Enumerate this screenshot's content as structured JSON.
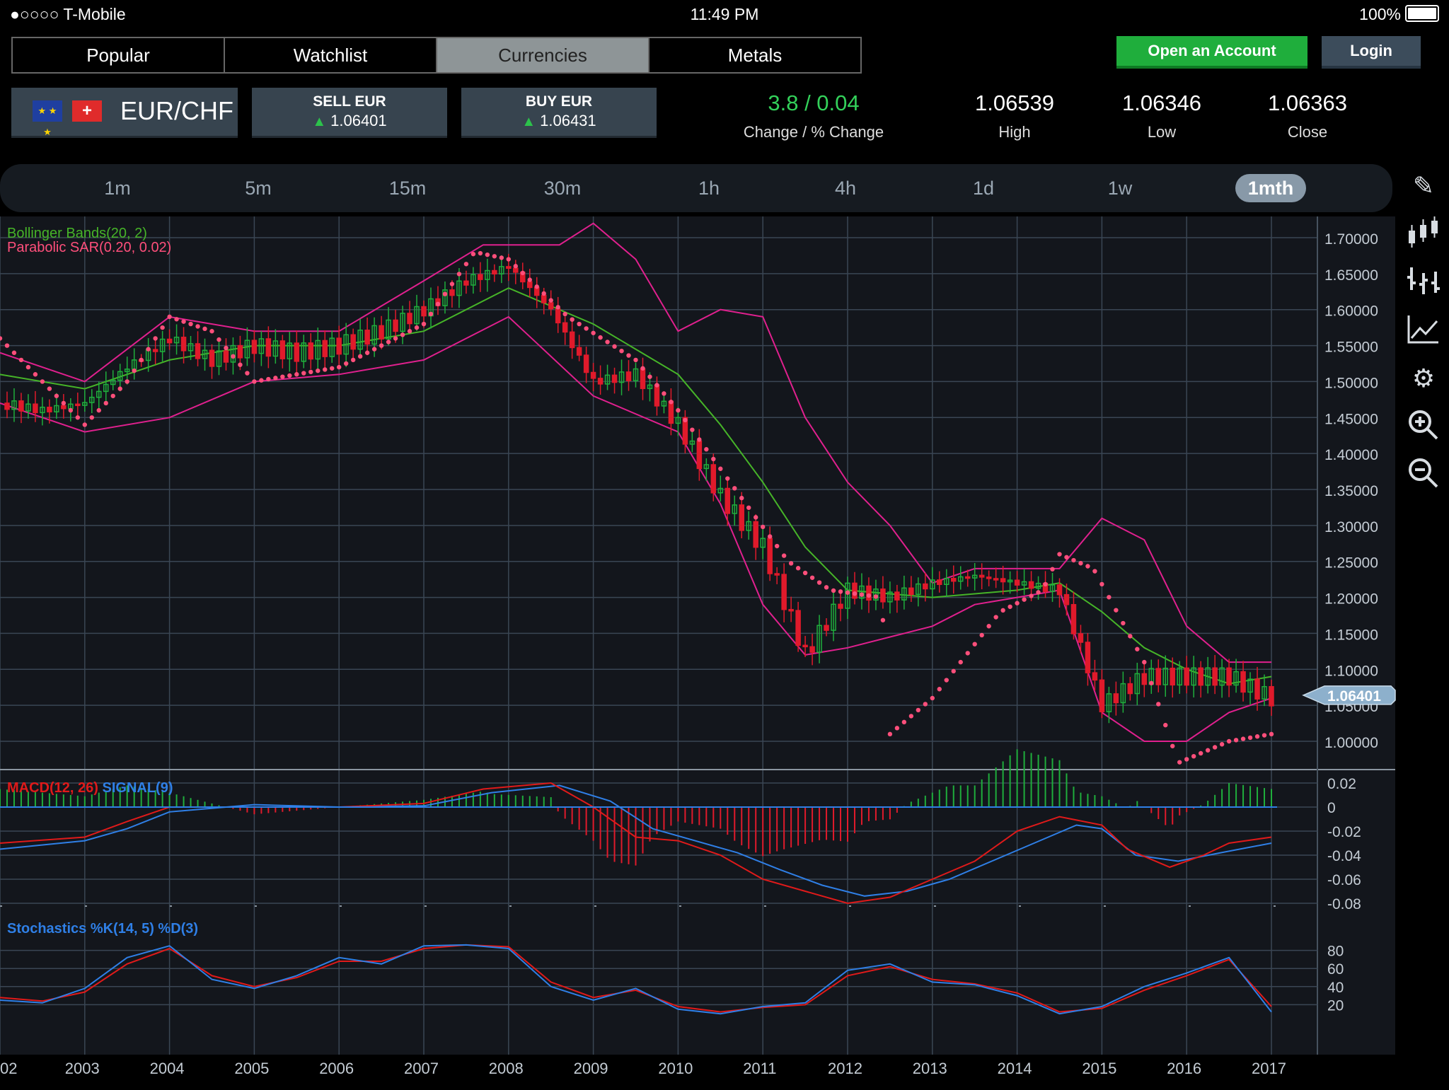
{
  "status": {
    "carrier": "●○○○○ T-Mobile",
    "time": "11:49 PM",
    "battery": "100%"
  },
  "tabs": [
    "Popular",
    "Watchlist",
    "Currencies",
    "Metals"
  ],
  "active_tab": "Currencies",
  "header": {
    "open_account": "Open an Account",
    "login": "Login"
  },
  "instrument": {
    "pair": "EUR/CHF",
    "sell_label": "SELL EUR",
    "sell_price": "1.06401",
    "buy_label": "BUY EUR",
    "buy_price": "1.06431",
    "change_value": "3.8 / 0.04",
    "change_label": "Change / % Change",
    "high_value": "1.06539",
    "high_label": "High",
    "low_value": "1.06346",
    "low_label": "Low",
    "close_value": "1.06363",
    "close_label": "Close"
  },
  "timeframes": [
    "1m",
    "5m",
    "15m",
    "30m",
    "1h",
    "4h",
    "1d",
    "1w",
    "1mth"
  ],
  "active_timeframe": "1mth",
  "tools": [
    "pencil-icon",
    "candlestick-icon",
    "ohlc-icon",
    "line-chart-icon",
    "gear-icon",
    "zoom-in-icon",
    "zoom-out-icon"
  ],
  "colors": {
    "price_up": "#1fae3c",
    "price_down": "#e01a2b",
    "bollinger": "#e0208e",
    "bollinger_mid": "#46b428",
    "sar": "#ff4f7b",
    "macd": "#e01a1a",
    "signal": "#2f7fe6",
    "stoch_k": "#2f7fe6",
    "stoch_d": "#e01a1a"
  },
  "chart_data": {
    "type": "line",
    "current_price": "1.06401",
    "indicator_labels": {
      "bollinger": "Bollinger Bands(20, 2)",
      "sar": "Parabolic SAR(0.20, 0.02)",
      "macd": "MACD(12, 26)",
      "signal": "SIGNAL(9)",
      "stochastics": "Stochastics %K(14, 5) %D(3)"
    },
    "price_axis": [
      "1.70000",
      "1.65000",
      "1.60000",
      "1.55000",
      "1.50000",
      "1.45000",
      "1.40000",
      "1.35000",
      "1.30000",
      "1.25000",
      "1.20000",
      "1.15000",
      "1.10000",
      "1.05000",
      "1.00000"
    ],
    "macd_axis": [
      "0.02",
      "0",
      "-0.02",
      "-0.04",
      "-0.06",
      "-0.08"
    ],
    "stoch_axis": [
      "80",
      "60",
      "40",
      "20"
    ],
    "x_axis": [
      "02",
      "2003",
      "2004",
      "2005",
      "2006",
      "2007",
      "2008",
      "2009",
      "2010",
      "2011",
      "2012",
      "2013",
      "2014",
      "2015",
      "2016",
      "2017"
    ],
    "ylim": [
      0.95,
      1.73
    ],
    "series": [
      {
        "name": "EUR/CHF",
        "x": [
          2002.0,
          2002.5,
          2003.0,
          2003.5,
          2004.0,
          2004.5,
          2005.0,
          2005.5,
          2006.0,
          2006.5,
          2007.0,
          2007.5,
          2008.0,
          2008.5,
          2009.0,
          2009.5,
          2010.0,
          2010.5,
          2011.0,
          2011.5,
          2012.0,
          2012.5,
          2013.0,
          2013.5,
          2014.0,
          2014.5,
          2015.0,
          2015.5,
          2016.0,
          2016.5,
          2017.0
        ],
        "values": [
          1.47,
          1.46,
          1.47,
          1.52,
          1.56,
          1.53,
          1.55,
          1.54,
          1.55,
          1.57,
          1.6,
          1.64,
          1.66,
          1.6,
          1.5,
          1.51,
          1.44,
          1.34,
          1.27,
          1.12,
          1.21,
          1.2,
          1.22,
          1.23,
          1.22,
          1.21,
          1.05,
          1.09,
          1.09,
          1.09,
          1.06
        ]
      },
      {
        "name": "Bollinger upper",
        "x": [
          2002.0,
          2003.0,
          2004.0,
          2005.0,
          2006.0,
          2007.0,
          2007.7,
          2008.6,
          2009.0,
          2009.5,
          2010.0,
          2010.5,
          2011.0,
          2011.5,
          2012.0,
          2012.5,
          2013.0,
          2013.5,
          2014.0,
          2014.5,
          2015.0,
          2015.5,
          2016.0,
          2016.5,
          2017.0
        ],
        "values": [
          1.54,
          1.5,
          1.59,
          1.57,
          1.57,
          1.64,
          1.69,
          1.69,
          1.72,
          1.67,
          1.57,
          1.6,
          1.59,
          1.45,
          1.36,
          1.3,
          1.22,
          1.24,
          1.24,
          1.24,
          1.31,
          1.28,
          1.16,
          1.11,
          1.11
        ]
      },
      {
        "name": "Bollinger middle",
        "x": [
          2002.0,
          2003.0,
          2004.0,
          2005.0,
          2006.0,
          2007.0,
          2008.0,
          2009.0,
          2010.0,
          2010.5,
          2011.0,
          2011.5,
          2012.0,
          2013.0,
          2014.0,
          2014.5,
          2015.0,
          2015.5,
          2016.0,
          2016.5,
          2017.0
        ],
        "values": [
          1.51,
          1.49,
          1.53,
          1.55,
          1.55,
          1.57,
          1.63,
          1.58,
          1.51,
          1.44,
          1.36,
          1.27,
          1.21,
          1.2,
          1.21,
          1.22,
          1.18,
          1.13,
          1.1,
          1.08,
          1.09
        ]
      },
      {
        "name": "Bollinger lower",
        "x": [
          2002.0,
          2003.0,
          2004.0,
          2005.0,
          2006.0,
          2007.0,
          2008.0,
          2009.0,
          2010.0,
          2010.5,
          2011.0,
          2011.5,
          2012.0,
          2013.0,
          2013.5,
          2014.0,
          2014.5,
          2015.0,
          2015.5,
          2016.0,
          2016.5,
          2017.0
        ],
        "values": [
          1.47,
          1.43,
          1.45,
          1.5,
          1.51,
          1.53,
          1.59,
          1.48,
          1.43,
          1.33,
          1.19,
          1.12,
          1.13,
          1.16,
          1.19,
          1.2,
          1.21,
          1.04,
          1.0,
          1.0,
          1.04,
          1.06
        ]
      },
      {
        "name": "Parabolic SAR",
        "x": [
          2002.0,
          2003.0,
          2003.5,
          2004.0,
          2004.5,
          2005.0,
          2006.0,
          2007.0,
          2007.6,
          2008.0,
          2008.7,
          2009.5,
          2010.0,
          2010.8,
          2011.3,
          2011.8,
          2012.4,
          2012.5,
          2013.0,
          2013.8,
          2014.3,
          2014.5,
          2014.9,
          2015.5,
          2015.9,
          2016.5,
          2017.0
        ],
        "values": [
          1.56,
          1.44,
          1.5,
          1.59,
          1.57,
          1.5,
          1.52,
          1.58,
          1.68,
          1.67,
          1.59,
          1.53,
          1.46,
          1.33,
          1.25,
          1.21,
          1.2,
          1.01,
          1.06,
          1.18,
          1.21,
          1.26,
          1.24,
          1.11,
          0.97,
          1.0,
          1.01
        ]
      },
      {
        "name": "MACD",
        "x": [
          2002.0,
          2003.0,
          2003.5,
          2004.0,
          2005.0,
          2006.0,
          2007.0,
          2007.7,
          2008.5,
          2009.0,
          2009.5,
          2010.0,
          2010.5,
          2011.0,
          2011.5,
          2012.0,
          2012.5,
          2013.0,
          2013.5,
          2014.0,
          2014.5,
          2015.0,
          2015.3,
          2015.8,
          2016.2,
          2016.5,
          2017.0
        ],
        "values": [
          -0.03,
          -0.025,
          -0.012,
          0.0,
          0.0,
          0.0,
          0.003,
          0.015,
          0.02,
          0.0,
          -0.025,
          -0.028,
          -0.04,
          -0.06,
          -0.07,
          -0.08,
          -0.075,
          -0.06,
          -0.045,
          -0.02,
          -0.008,
          -0.015,
          -0.035,
          -0.05,
          -0.04,
          -0.03,
          -0.025
        ]
      },
      {
        "name": "SIGNAL",
        "x": [
          2002.0,
          2003.0,
          2003.5,
          2004.0,
          2005.0,
          2006.0,
          2007.0,
          2007.8,
          2008.6,
          2009.2,
          2009.7,
          2010.2,
          2010.7,
          2011.2,
          2011.7,
          2012.2,
          2012.7,
          2013.2,
          2013.7,
          2014.2,
          2014.7,
          2015.0,
          2015.4,
          2015.9,
          2016.4,
          2017.0
        ],
        "values": [
          -0.035,
          -0.028,
          -0.018,
          -0.004,
          0.002,
          0.0,
          0.001,
          0.012,
          0.018,
          0.005,
          -0.018,
          -0.028,
          -0.038,
          -0.052,
          -0.065,
          -0.074,
          -0.07,
          -0.06,
          -0.045,
          -0.03,
          -0.015,
          -0.018,
          -0.04,
          -0.045,
          -0.038,
          -0.03
        ]
      },
      {
        "name": "%K",
        "x": [
          2002.0,
          2002.5,
          2003.0,
          2003.5,
          2004.0,
          2004.5,
          2005.0,
          2005.5,
          2006.0,
          2006.5,
          2007.0,
          2007.5,
          2008.0,
          2008.5,
          2009.0,
          2009.5,
          2010.0,
          2010.5,
          2011.0,
          2011.5,
          2012.0,
          2012.5,
          2013.0,
          2013.5,
          2014.0,
          2014.5,
          2015.0,
          2015.5,
          2016.0,
          2016.5,
          2017.0
        ],
        "values": [
          25,
          22,
          38,
          72,
          85,
          48,
          38,
          52,
          72,
          65,
          85,
          86,
          82,
          40,
          25,
          38,
          15,
          10,
          18,
          22,
          58,
          65,
          45,
          42,
          30,
          10,
          18,
          40,
          55,
          72,
          12
        ]
      },
      {
        "name": "%D",
        "x": [
          2002.0,
          2002.5,
          2003.0,
          2003.5,
          2004.0,
          2004.5,
          2005.0,
          2005.5,
          2006.0,
          2006.5,
          2007.0,
          2007.5,
          2008.0,
          2008.5,
          2009.0,
          2009.5,
          2010.0,
          2010.5,
          2011.0,
          2011.5,
          2012.0,
          2012.5,
          2013.0,
          2013.5,
          2014.0,
          2014.5,
          2015.0,
          2015.5,
          2016.0,
          2016.5,
          2017.0
        ],
        "values": [
          28,
          24,
          34,
          65,
          82,
          52,
          40,
          50,
          68,
          68,
          82,
          86,
          84,
          45,
          28,
          36,
          18,
          12,
          17,
          20,
          52,
          62,
          48,
          43,
          33,
          12,
          16,
          36,
          52,
          70,
          18
        ]
      }
    ]
  }
}
